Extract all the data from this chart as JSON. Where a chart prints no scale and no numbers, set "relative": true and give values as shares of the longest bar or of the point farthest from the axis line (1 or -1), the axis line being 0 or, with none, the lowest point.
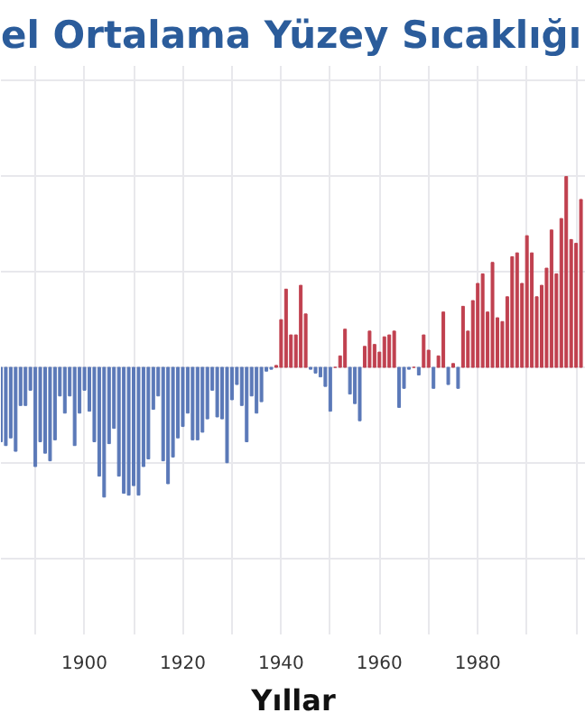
{
  "chart_data": {
    "type": "bar",
    "title": "el Ortalama Yüzey Sıcaklığı",
    "xlabel": "Yıllar",
    "relative": true,
    "grid": true,
    "x": [
      1883,
      1884,
      1885,
      1886,
      1887,
      1888,
      1889,
      1890,
      1891,
      1892,
      1893,
      1894,
      1895,
      1896,
      1897,
      1898,
      1899,
      1900,
      1901,
      1902,
      1903,
      1904,
      1905,
      1906,
      1907,
      1908,
      1909,
      1910,
      1911,
      1912,
      1913,
      1914,
      1915,
      1916,
      1917,
      1918,
      1919,
      1920,
      1921,
      1922,
      1923,
      1924,
      1925,
      1926,
      1927,
      1928,
      1929,
      1930,
      1931,
      1932,
      1933,
      1934,
      1935,
      1936,
      1937,
      1938,
      1939,
      1940,
      1941,
      1942,
      1943,
      1944,
      1945,
      1946,
      1947,
      1948,
      1949,
      1950,
      1951,
      1952,
      1953,
      1954,
      1955,
      1956,
      1957,
      1958,
      1959,
      1960,
      1961,
      1962,
      1963,
      1964,
      1965,
      1966,
      1967,
      1968,
      1969,
      1970,
      1971,
      1972,
      1973,
      1974,
      1975,
      1976,
      1977,
      1978,
      1979,
      1980,
      1981,
      1982,
      1983,
      1984,
      1985,
      1986,
      1987,
      1988,
      1989,
      1990,
      1991,
      1992,
      1993,
      1994,
      1995,
      1996,
      1997,
      1998,
      1999,
      2000,
      2001
    ],
    "xlim": [
      1883,
      2002
    ],
    "xticks": [
      1900,
      1920,
      1940,
      1960,
      1980
    ],
    "series": [
      {
        "color": "#5b79b8",
        "values": [
          -0.39,
          -0.41,
          -0.37,
          -0.44,
          -0.2,
          -0.2,
          -0.12,
          -0.52,
          -0.39,
          -0.45,
          -0.49,
          -0.38,
          -0.15,
          -0.24,
          -0.15,
          -0.41,
          -0.24,
          -0.12,
          -0.23,
          -0.39,
          -0.57,
          -0.68,
          -0.4,
          -0.32,
          -0.57,
          -0.66,
          -0.67,
          -0.62,
          -0.67,
          -0.52,
          -0.48,
          -0.22,
          -0.15,
          -0.49,
          -0.61,
          -0.47,
          -0.37,
          -0.31,
          -0.24,
          -0.38,
          -0.38,
          -0.34,
          -0.27,
          -0.12,
          -0.26,
          -0.27,
          -0.5,
          -0.17,
          -0.09,
          -0.2,
          -0.39,
          -0.15,
          -0.24,
          -0.18,
          -0.02,
          -0.01,
          null,
          null,
          null,
          null,
          null,
          null,
          null,
          -0.01,
          -0.03,
          -0.05,
          -0.1,
          -0.23,
          null,
          null,
          null,
          -0.14,
          -0.19,
          -0.28,
          null,
          null,
          null,
          null,
          null,
          null,
          null,
          -0.21,
          -0.11,
          -0.01,
          null,
          -0.04,
          null,
          null,
          -0.11,
          null,
          null,
          -0.09,
          null,
          -0.11,
          null,
          null,
          null,
          null,
          null,
          null,
          null,
          null,
          null,
          null,
          null,
          null,
          null,
          null,
          null,
          null,
          null,
          null,
          null,
          null,
          null,
          null,
          null,
          null,
          null
        ]
      },
      {
        "color": "#c0404f",
        "values": [
          null,
          null,
          null,
          null,
          null,
          null,
          null,
          null,
          null,
          null,
          null,
          null,
          null,
          null,
          null,
          null,
          null,
          null,
          null,
          null,
          null,
          null,
          null,
          null,
          null,
          null,
          null,
          null,
          null,
          null,
          null,
          null,
          null,
          null,
          null,
          null,
          null,
          null,
          null,
          null,
          null,
          null,
          null,
          null,
          null,
          null,
          null,
          null,
          null,
          null,
          null,
          null,
          null,
          null,
          null,
          null,
          0.01,
          0.25,
          0.41,
          0.17,
          0.17,
          0.43,
          0.28,
          null,
          null,
          null,
          null,
          null,
          0.0,
          0.06,
          0.2,
          null,
          null,
          null,
          0.11,
          0.19,
          0.12,
          0.08,
          0.16,
          0.17,
          0.19,
          null,
          null,
          null,
          0.0,
          null,
          0.17,
          0.09,
          null,
          0.06,
          0.29,
          null,
          0.02,
          null,
          0.32,
          0.19,
          0.35,
          0.44,
          0.49,
          0.29,
          0.55,
          0.26,
          0.24,
          0.37,
          0.58,
          0.6,
          0.44,
          0.69,
          0.6,
          0.37,
          0.43,
          0.52,
          0.72,
          0.49,
          0.78,
          1.0,
          0.67,
          0.65,
          0.88
        ]
      }
    ]
  }
}
